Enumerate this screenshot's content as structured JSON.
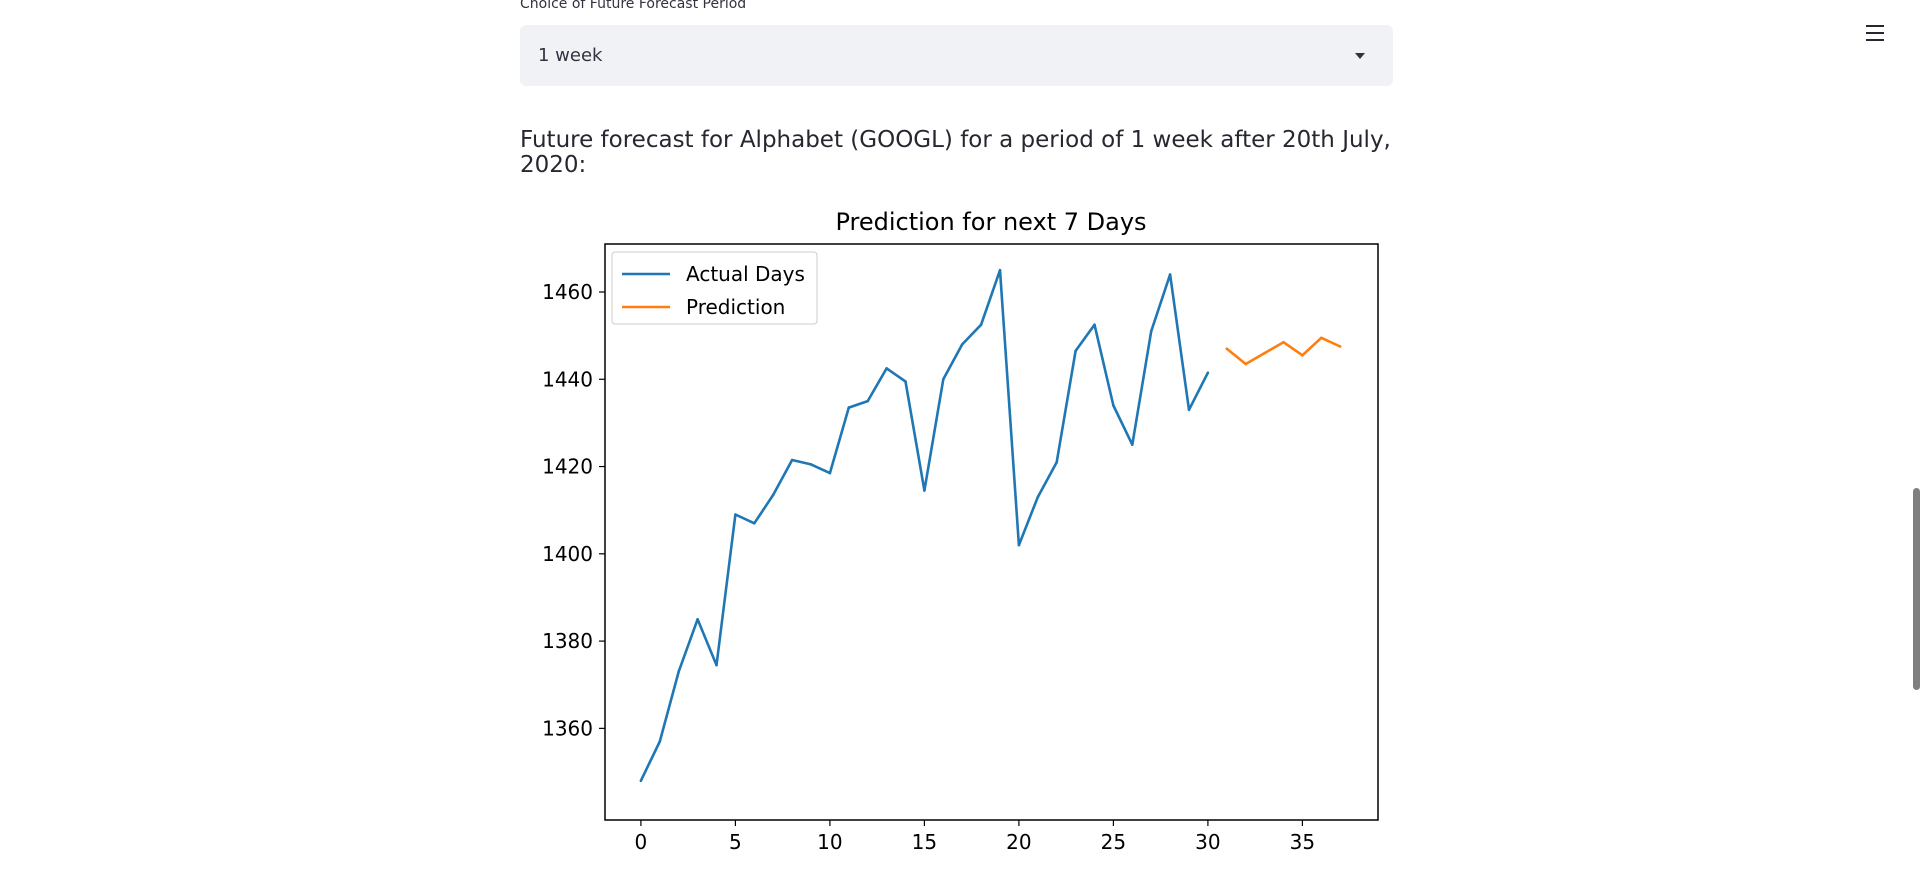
{
  "forecast_select": {
    "label": "Choice of Future Forecast Period",
    "value": "1 week"
  },
  "heading": "Future forecast for Alphabet (GOOGL) for a period of 1 week after 20th July, 2020:",
  "menu": {
    "icon": "hamburger-icon"
  },
  "colors": {
    "actual": "#1f77b4",
    "prediction": "#ff7f0e"
  },
  "chart_data": {
    "type": "line",
    "title": "Prediction for next 7 Days",
    "xlabel": "",
    "ylabel": "",
    "xlim": [
      -1.9,
      39.0
    ],
    "ylim": [
      1339,
      1471
    ],
    "xticks": [
      0,
      5,
      10,
      15,
      20,
      25,
      30,
      35
    ],
    "yticks": [
      1360,
      1380,
      1400,
      1420,
      1440,
      1460
    ],
    "grid": false,
    "legend_position": "top-left",
    "series": [
      {
        "name": "Actual Days",
        "color": "#1f77b4",
        "x": [
          0,
          1,
          2,
          3,
          4,
          5,
          6,
          7,
          8,
          9,
          10,
          11,
          12,
          13,
          14,
          15,
          16,
          17,
          18,
          19,
          20,
          21,
          22,
          23,
          24,
          25,
          26,
          27,
          28,
          29,
          30
        ],
        "y": [
          1348,
          1357,
          1373,
          1385,
          1374.5,
          1409,
          1407,
          1413.5,
          1421.5,
          1420.5,
          1418.5,
          1433.5,
          1435,
          1442.5,
          1439.5,
          1414.5,
          1440,
          1448,
          1452.5,
          1465,
          1402,
          1413,
          1421,
          1446.5,
          1452.5,
          1434,
          1425,
          1451,
          1464,
          1433,
          1441.5
        ]
      },
      {
        "name": "Prediction",
        "color": "#ff7f0e",
        "x": [
          31,
          32,
          33,
          34,
          35,
          36,
          37
        ],
        "y": [
          1447,
          1443.5,
          1446,
          1448.5,
          1445.5,
          1449.5,
          1447.5
        ]
      }
    ]
  }
}
